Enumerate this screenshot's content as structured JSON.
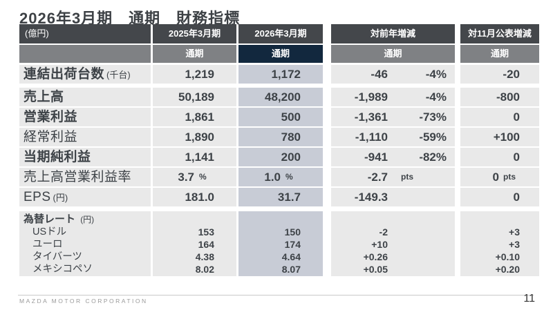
{
  "title": "2026年3月期　通期　財務指標",
  "unit_label": "(億円)",
  "colors": {
    "header_charcoal": "#44474b",
    "header_gray": "#7f8184",
    "highlight_navy": "#12283e",
    "cell_gray": "#e9e9e9",
    "cell_blue": "#c8ccd6",
    "text": "#3d4247"
  },
  "header": {
    "fy2025": "2025年3月期",
    "fy2026": "2026年3月期",
    "yoy": "対前年増減",
    "vs_nov": "対11月公表増減",
    "period": "通期"
  },
  "rows": [
    {
      "label": "連結出荷台数",
      "suffix": "(千台)",
      "fy2025": "1,219",
      "fy2026": "1,172",
      "yoy": "-46",
      "yoy_pct": "-4%",
      "nov": "-20"
    },
    {
      "label": "売上高",
      "fy2025": "50,189",
      "fy2026": "48,200",
      "yoy": "-1,989",
      "yoy_pct": "-4%",
      "nov": "-800"
    },
    {
      "label": "営業利益",
      "fy2025": "1,861",
      "fy2026": "500",
      "yoy": "-1,361",
      "yoy_pct": "-73%",
      "nov": "0"
    },
    {
      "label": "経常利益",
      "fy2025": "1,890",
      "fy2026": "780",
      "yoy": "-1,110",
      "yoy_pct": "-59%",
      "nov": "+100"
    },
    {
      "label": "当期純利益",
      "fy2025": "1,141",
      "fy2026": "200",
      "yoy": "-941",
      "yoy_pct": "-82%",
      "nov": "0"
    },
    {
      "label": "売上高営業利益率",
      "fy2025": "3.7",
      "fy2025_unit": "%",
      "fy2026": "1.0",
      "fy2026_unit": "%",
      "yoy": "-2.7",
      "yoy_unit": "pts",
      "nov": "0",
      "nov_unit": "pts"
    },
    {
      "label": "EPS",
      "suffix": "(円)",
      "fy2025": "181.0",
      "fy2026": "31.7",
      "yoy": "-149.3",
      "nov": "0"
    }
  ],
  "fx": {
    "label": "為替レート",
    "suffix": "(円)",
    "rows": [
      {
        "label": "USドル",
        "fy2025": "153",
        "fy2026": "150",
        "yoy": "-2",
        "nov": "+3"
      },
      {
        "label": "ユーロ",
        "fy2025": "164",
        "fy2026": "174",
        "yoy": "+10",
        "nov": "+3"
      },
      {
        "label": "タイバーツ",
        "fy2025": "4.38",
        "fy2026": "4.64",
        "yoy": "+0.26",
        "nov": "+0.10"
      },
      {
        "label": "メキシコペソ",
        "fy2025": "8.02",
        "fy2026": "8.07",
        "yoy": "+0.05",
        "nov": "+0.20"
      }
    ]
  },
  "footer": {
    "company": "MAZDA MOTOR CORPORATION",
    "page": "11"
  }
}
